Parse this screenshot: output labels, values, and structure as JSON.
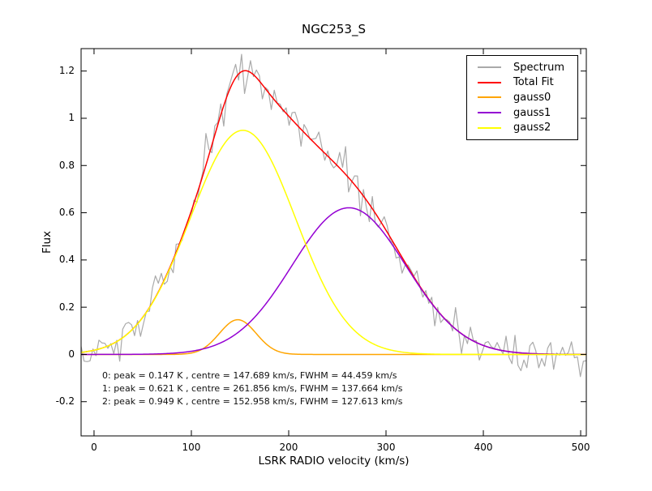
{
  "figure": {
    "background": "#ffffff"
  },
  "chart_data": {
    "type": "line",
    "title": "NGC253_S",
    "xlabel": "LSRK RADIO velocity (km/s)",
    "ylabel": "Flux",
    "xlim": [
      -13.3,
      505.8
    ],
    "ylim": [
      -0.345,
      1.295
    ],
    "xticks": {
      "values": [
        0,
        100,
        200,
        300,
        400,
        500
      ],
      "labels": [
        "0",
        "100",
        "200",
        "300",
        "400",
        "500"
      ]
    },
    "yticks": {
      "values": [
        -0.2,
        0,
        0.2,
        0.4,
        0.6,
        0.8,
        1,
        1.2
      ],
      "labels": [
        "-0.2",
        "0",
        "0.2",
        "0.4",
        "0.6",
        "0.8",
        "1",
        "1.2"
      ]
    },
    "grid": false,
    "legend": {
      "position": "upper right",
      "entries": [
        "Spectrum",
        "Total Fit",
        "gauss0",
        "gauss1",
        "gauss2"
      ]
    },
    "series": [
      {
        "name": "Spectrum",
        "color": "#aaaaaa",
        "type": "spectrum",
        "model": "sum_of_gaussians_plus_noise",
        "x_start": -13.3,
        "x_end": 505.8,
        "n_points": 171,
        "noise_sigma": 0.04,
        "noise_seed": 42
      },
      {
        "name": "Total Fit",
        "color": "#ff0000",
        "type": "sum_of_gaussians"
      },
      {
        "name": "gauss0",
        "color": "#ffa500",
        "type": "gaussian",
        "peak": 0.147,
        "centre": 147.689,
        "fwhm": 44.459
      },
      {
        "name": "gauss1",
        "color": "#9400d3",
        "type": "gaussian",
        "peak": 0.621,
        "centre": 261.856,
        "fwhm": 137.664
      },
      {
        "name": "gauss2",
        "color": "#ffff00",
        "type": "gaussian",
        "peak": 0.949,
        "centre": 152.958,
        "fwhm": 127.613
      }
    ],
    "annotation": {
      "lines": [
        "0: peak = 0.147 K , centre = 147.689 km/s, FWHM = 44.459 km/s",
        "1: peak = 0.621 K , centre = 261.856 km/s, FWHM = 137.664 km/s",
        "2: peak = 0.949 K , centre = 152.958 km/s, FWHM = 127.613 km/s"
      ]
    }
  }
}
